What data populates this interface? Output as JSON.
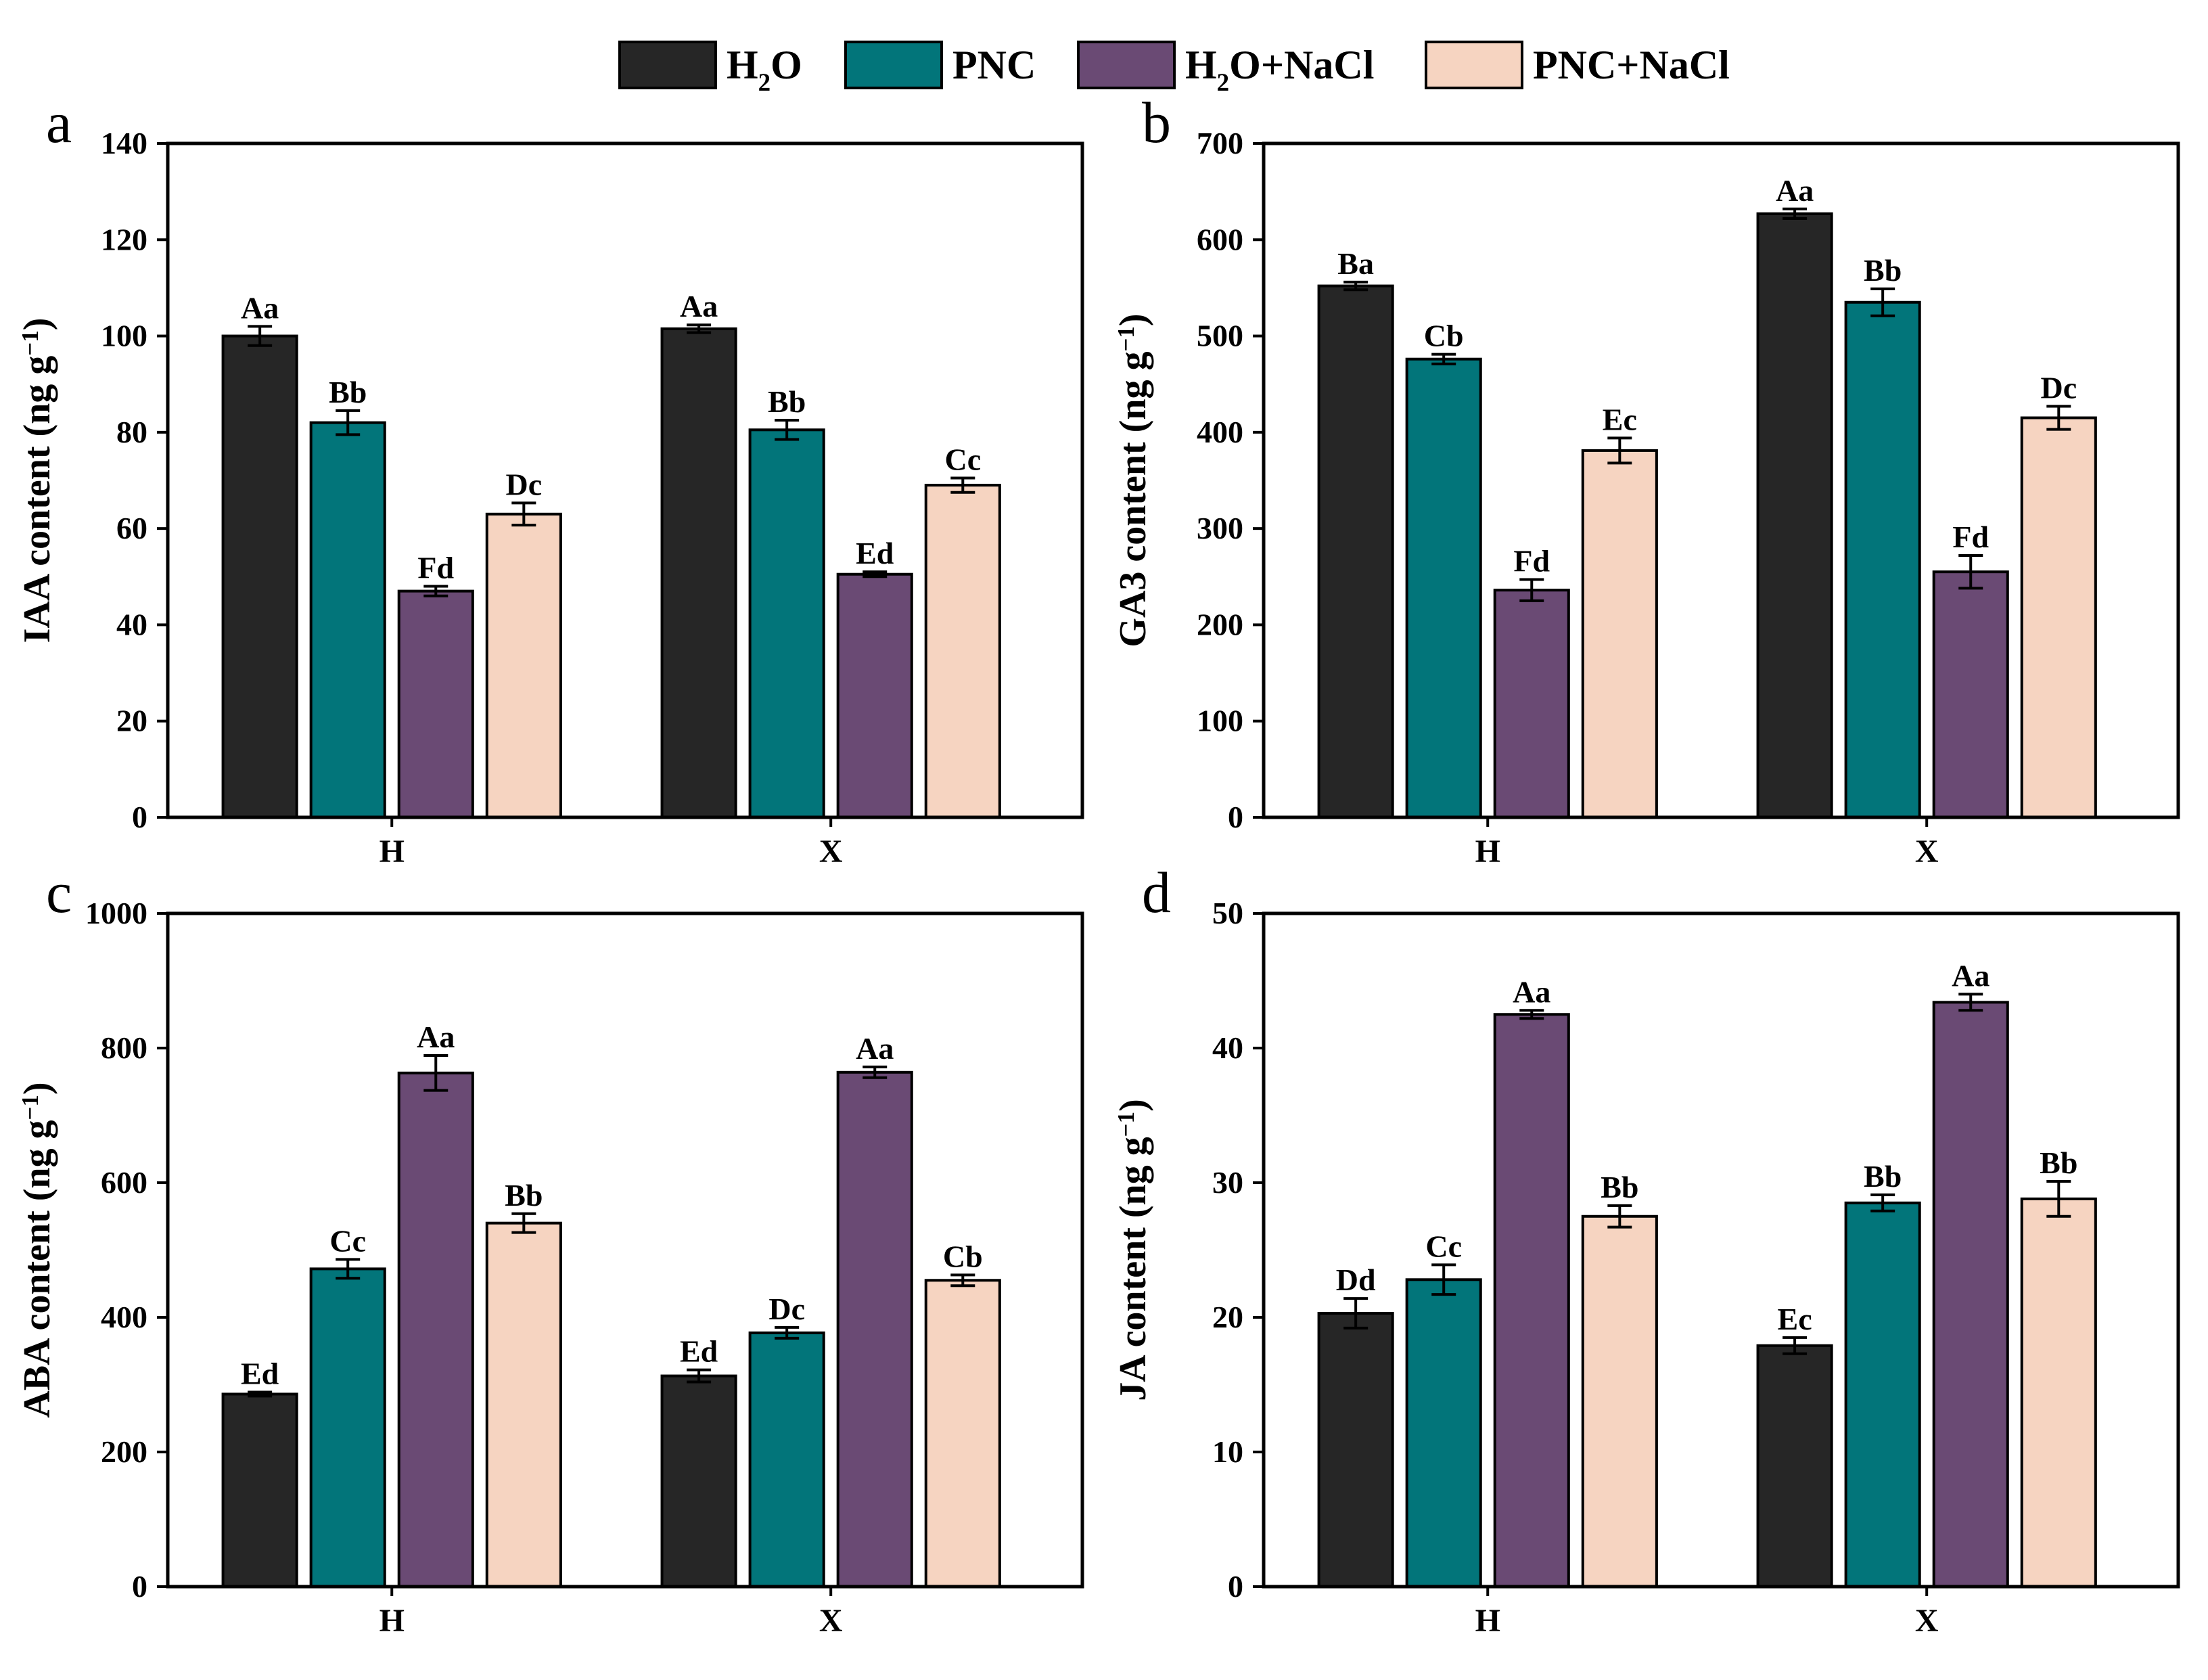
{
  "legend": [
    {
      "key": "h2o",
      "label": "H2O",
      "color": "#262626"
    },
    {
      "key": "pnc",
      "label": "PNC",
      "color": "#02757a"
    },
    {
      "key": "h2o_nacl",
      "label": "H2O+NaCl",
      "color": "#6a4a74"
    },
    {
      "key": "pnc_nacl",
      "label": "PNC+NaCl",
      "color": "#f6d4c1"
    }
  ],
  "chart_data": [
    {
      "panel": "a",
      "type": "bar",
      "ylabel": "IAA content (ng g-1)",
      "ylim": [
        0,
        140
      ],
      "yticks": [
        0,
        20,
        40,
        60,
        80,
        100,
        120,
        140
      ],
      "categories": [
        "H",
        "X"
      ],
      "series": [
        {
          "name": "H2O",
          "values": [
            100,
            101.5
          ],
          "errors": [
            2,
            0.8
          ],
          "labels": [
            "Aa",
            "Aa"
          ]
        },
        {
          "name": "PNC",
          "values": [
            82,
            80.5
          ],
          "errors": [
            2.5,
            2
          ],
          "labels": [
            "Bb",
            "Bb"
          ]
        },
        {
          "name": "H2O+NaCl",
          "values": [
            47,
            50.5
          ],
          "errors": [
            1,
            0.5
          ],
          "labels": [
            "Fd",
            "Ed"
          ]
        },
        {
          "name": "PNC+NaCl",
          "values": [
            63,
            69
          ],
          "errors": [
            2.3,
            1.5
          ],
          "labels": [
            "Dc",
            "Cc"
          ]
        }
      ]
    },
    {
      "panel": "b",
      "type": "bar",
      "ylabel": "GA3 content (ng g-1)",
      "ylim": [
        0,
        700
      ],
      "yticks": [
        0,
        100,
        200,
        300,
        400,
        500,
        600,
        700
      ],
      "categories": [
        "H",
        "X"
      ],
      "series": [
        {
          "name": "H2O",
          "values": [
            552,
            627
          ],
          "errors": [
            4,
            5
          ],
          "labels": [
            "Ba",
            "Aa"
          ]
        },
        {
          "name": "PNC",
          "values": [
            476,
            535
          ],
          "errors": [
            5,
            14
          ],
          "labels": [
            "Cb",
            "Bb"
          ]
        },
        {
          "name": "H2O+NaCl",
          "values": [
            236,
            255
          ],
          "errors": [
            11,
            17
          ],
          "labels": [
            "Fd",
            "Fd"
          ]
        },
        {
          "name": "PNC+NaCl",
          "values": [
            381,
            415
          ],
          "errors": [
            13,
            12
          ],
          "labels": [
            "Ec",
            "Dc"
          ]
        }
      ]
    },
    {
      "panel": "c",
      "type": "bar",
      "ylabel": "ABA content (ng g-1)",
      "ylim": [
        0,
        1000
      ],
      "yticks": [
        0,
        200,
        400,
        600,
        800,
        1000
      ],
      "categories": [
        "H",
        "X"
      ],
      "series": [
        {
          "name": "H2O",
          "values": [
            286,
            313
          ],
          "errors": [
            3,
            9
          ],
          "labels": [
            "Ed",
            "Ed"
          ]
        },
        {
          "name": "PNC",
          "values": [
            472,
            377
          ],
          "errors": [
            14,
            8
          ],
          "labels": [
            "Cc",
            "Dc"
          ]
        },
        {
          "name": "H2O+NaCl",
          "values": [
            763,
            764
          ],
          "errors": [
            26,
            8
          ],
          "labels": [
            "Aa",
            "Aa"
          ]
        },
        {
          "name": "PNC+NaCl",
          "values": [
            540,
            455
          ],
          "errors": [
            14,
            8
          ],
          "labels": [
            "Bb",
            "Cb"
          ]
        }
      ]
    },
    {
      "panel": "d",
      "type": "bar",
      "ylabel": "JA content (ng g-1)",
      "ylim": [
        0,
        50
      ],
      "yticks": [
        0,
        10,
        20,
        30,
        40,
        50
      ],
      "categories": [
        "H",
        "X"
      ],
      "series": [
        {
          "name": "H2O",
          "values": [
            20.3,
            17.9
          ],
          "errors": [
            1.1,
            0.6
          ],
          "labels": [
            "Dd",
            "Ec"
          ]
        },
        {
          "name": "PNC",
          "values": [
            22.8,
            28.5
          ],
          "errors": [
            1.1,
            0.6
          ],
          "labels": [
            "Cc",
            "Bb"
          ]
        },
        {
          "name": "H2O+NaCl",
          "values": [
            42.5,
            43.4
          ],
          "errors": [
            0.3,
            0.6
          ],
          "labels": [
            "Aa",
            "Aa"
          ]
        },
        {
          "name": "PNC+NaCl",
          "values": [
            27.5,
            28.8
          ],
          "errors": [
            0.8,
            1.3
          ],
          "labels": [
            "Bb",
            "Bb"
          ]
        }
      ]
    }
  ]
}
